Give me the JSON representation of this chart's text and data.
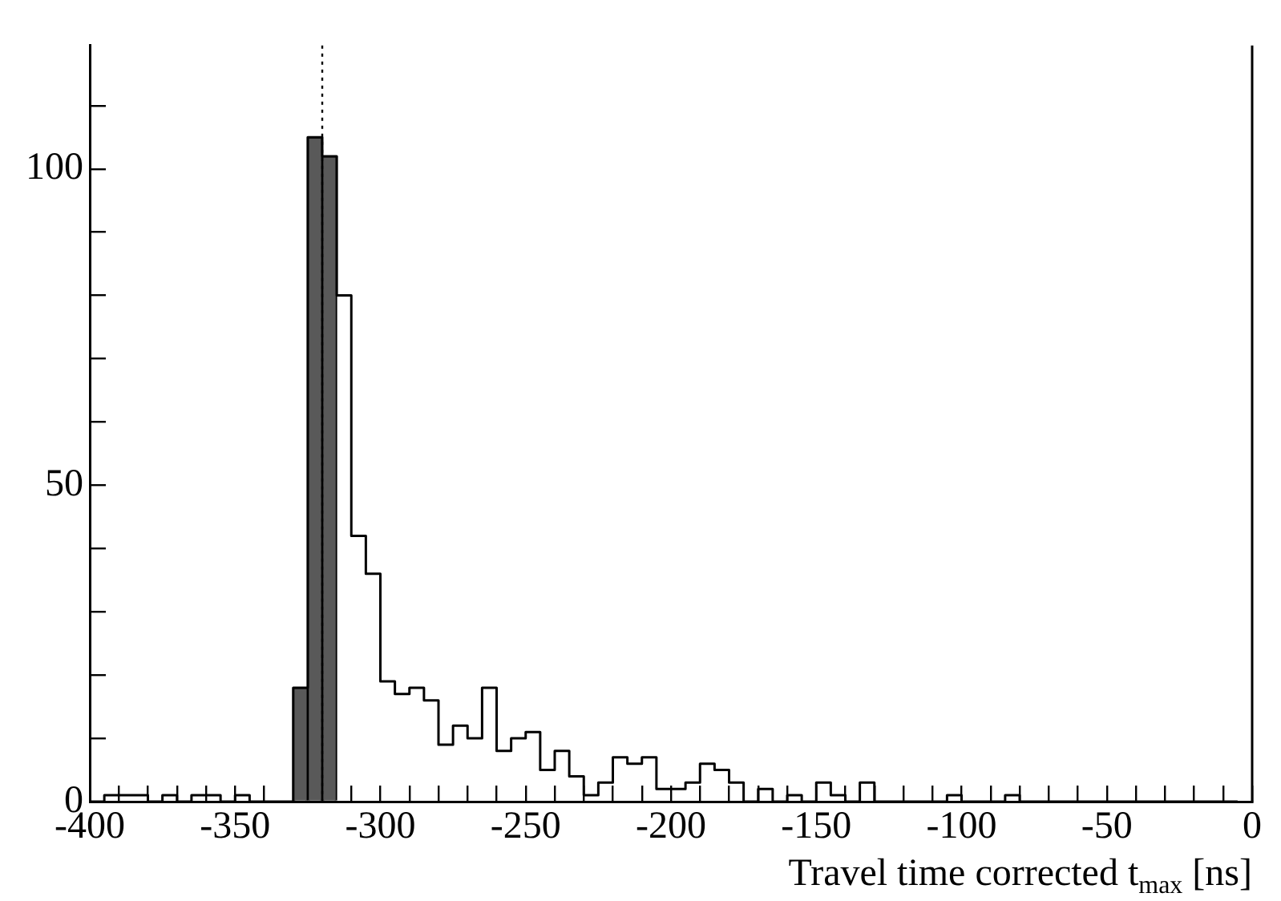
{
  "chart_data": {
    "type": "histogram",
    "xlabel": "Travel time corrected t$_{max}$ [ns]",
    "bins": [
      -330,
      -325,
      -320,
      -315
    ],
    "series": [
      {
        "type": "step",
        "color": "#000000",
        "x": [
          -400,
          -395,
          -390,
          -385,
          -380,
          -375,
          -370,
          -365,
          -360,
          -355,
          -350,
          -345,
          -340,
          -335,
          -330,
          -325,
          -320,
          -315,
          -310,
          -305,
          -300,
          -295,
          -290,
          -285,
          -280,
          -275,
          -270,
          -265,
          -260,
          -255,
          -250,
          -245,
          -240,
          -235,
          -230,
          -225,
          -220,
          -215,
          -210,
          -205,
          -200,
          -195,
          -190,
          -185,
          -180,
          -175,
          -170,
          -165,
          -160,
          -155,
          -150,
          -145,
          -140,
          -135,
          -130,
          -125,
          -120,
          -115,
          -110,
          -105,
          -100,
          -95,
          -90,
          -85,
          -80,
          -75,
          -70,
          -65,
          -60,
          -55,
          -50,
          -45,
          -40,
          -35,
          -30,
          -25,
          -20,
          -15,
          -10,
          -5
        ],
        "values": [
          0,
          1,
          1,
          1,
          0,
          1,
          0,
          1,
          1,
          0,
          1,
          0,
          0,
          0,
          18,
          105,
          102,
          80,
          42,
          36,
          19,
          17,
          18,
          16,
          9,
          12,
          10,
          18,
          8,
          10,
          11,
          5,
          8,
          4,
          1,
          3,
          7,
          6,
          7,
          2,
          2,
          3,
          6,
          5,
          3,
          0,
          2,
          0,
          1,
          0,
          3,
          1,
          0,
          3,
          0,
          0,
          0,
          0,
          0,
          1,
          0,
          0,
          0,
          1,
          0,
          0,
          0,
          0,
          0,
          0,
          0,
          0,
          0,
          0,
          0,
          0,
          0,
          0,
          0,
          0
        ]
      },
      {
        "color": "#595959",
        "values": [
          18,
          105,
          102
        ]
      }
    ],
    "xlim": [
      -400,
      0
    ],
    "xticks": [
      -400,
      {
        "value": -390,
        "label": null
      },
      {
        "value": -380,
        "label": null
      },
      {
        "value": -370,
        "label": null
      },
      {
        "value": -360,
        "label": null
      },
      -350,
      {
        "value": -340,
        "label": null
      },
      {
        "value": -330,
        "label": null
      },
      {
        "value": -320,
        "label": null
      },
      {
        "value": -310,
        "label": null
      },
      -300,
      {
        "value": -290,
        "label": null
      },
      {
        "value": -280,
        "label": null
      },
      {
        "value": -270,
        "label": null
      },
      {
        "value": -260,
        "label": null
      },
      -250,
      {
        "value": -240,
        "label": null
      },
      {
        "value": -230,
        "label": null
      },
      {
        "value": -220,
        "label": null
      },
      {
        "value": -210,
        "label": null
      },
      -200,
      {
        "value": -190,
        "label": null
      },
      {
        "value": -180,
        "label": null
      },
      {
        "value": -170,
        "label": null
      },
      {
        "value": -160,
        "label": null
      },
      -150,
      {
        "value": -140,
        "label": null
      },
      {
        "value": -130,
        "label": null
      },
      {
        "value": -120,
        "label": null
      },
      {
        "value": -110,
        "label": null
      },
      -100,
      {
        "value": -90,
        "label": null
      },
      {
        "value": -80,
        "label": null
      },
      {
        "value": -70,
        "label": null
      },
      {
        "value": -60,
        "label": null
      },
      -50,
      {
        "value": -40,
        "label": null
      },
      {
        "value": -30,
        "label": null
      },
      {
        "value": -20,
        "label": null
      },
      {
        "value": -10,
        "label": null
      },
      0
    ],
    "ylim": [
      0,
      119.5
    ],
    "yticks": [
      0,
      {
        "value": 10,
        "label": null
      },
      {
        "value": 20,
        "label": null
      },
      {
        "value": 30,
        "label": null
      },
      {
        "value": 40,
        "label": null
      },
      50,
      {
        "value": 60,
        "label": null
      },
      {
        "value": 70,
        "label": null
      },
      {
        "value": 80,
        "label": null
      },
      {
        "value": 90,
        "label": null
      },
      100,
      {
        "value": 110,
        "label": null
      }
    ],
    "ref_lines": [
      {
        "axis": "x",
        "value": -320,
        "line_style": "dotted",
        "color": "#000000"
      }
    ]
  }
}
